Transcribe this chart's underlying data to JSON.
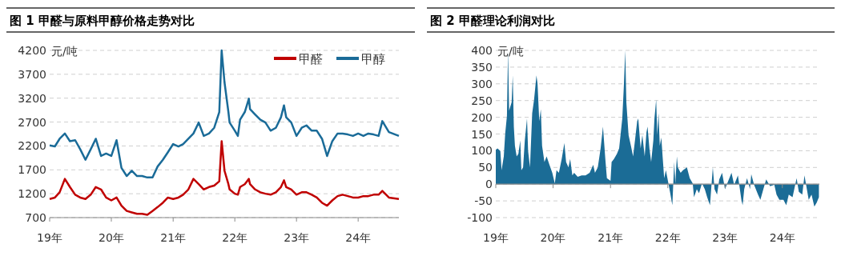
{
  "chart_data": [
    {
      "type": "line",
      "title": "图 1 甲醛与原料甲醇价格走势对比",
      "ylabel": "元/吨",
      "x": [
        "2019-01-01",
        "2019-02-01",
        "2019-03-01",
        "2019-04-01",
        "2019-05-01",
        "2019-06-01",
        "2019-07-01",
        "2019-08-01",
        "2019-09-01",
        "2019-10-01",
        "2019-11-01",
        "2019-12-01",
        "2020-01-01",
        "2020-02-01",
        "2020-03-01",
        "2020-04-01",
        "2020-05-01",
        "2020-06-01",
        "2020-07-01",
        "2020-08-01",
        "2020-09-01",
        "2020-10-01",
        "2020-11-01",
        "2020-12-01",
        "2021-01-01",
        "2021-02-01",
        "2021-03-01",
        "2021-04-01",
        "2021-05-01",
        "2021-06-01",
        "2021-07-01",
        "2021-08-01",
        "2021-09-01",
        "2021-10-01",
        "2021-10-15",
        "2021-11-01",
        "2021-11-24",
        "2021-12-01",
        "2022-01-01",
        "2022-01-19",
        "2022-02-01",
        "2022-03-01",
        "2022-03-25",
        "2022-04-01",
        "2022-05-01",
        "2022-06-01",
        "2022-07-01",
        "2022-08-01",
        "2022-09-01",
        "2022-10-01",
        "2022-10-19",
        "2022-11-01",
        "2022-12-01",
        "2023-01-01",
        "2023-02-01",
        "2023-03-01",
        "2023-04-01",
        "2023-05-01",
        "2023-06-01",
        "2023-07-01",
        "2023-08-01",
        "2023-09-01",
        "2023-10-01",
        "2023-11-01",
        "2023-12-01",
        "2024-01-01",
        "2024-02-01",
        "2024-03-01",
        "2024-04-01",
        "2024-05-01",
        "2024-05-23",
        "2024-07-01",
        "2024-08-29"
      ],
      "series": [
        {
          "name": "甲醛",
          "color": "#c00000",
          "values": [
            1090,
            1120,
            1230,
            1510,
            1340,
            1180,
            1120,
            1090,
            1180,
            1340,
            1290,
            1120,
            1060,
            1120,
            950,
            840,
            810,
            780,
            780,
            760,
            840,
            920,
            1010,
            1120,
            1090,
            1120,
            1180,
            1290,
            1510,
            1400,
            1290,
            1340,
            1370,
            1460,
            2300,
            1680,
            1400,
            1290,
            1200,
            1180,
            1340,
            1400,
            1510,
            1400,
            1290,
            1230,
            1200,
            1180,
            1230,
            1340,
            1480,
            1340,
            1290,
            1180,
            1230,
            1230,
            1180,
            1120,
            1010,
            950,
            1060,
            1150,
            1180,
            1150,
            1120,
            1120,
            1150,
            1150,
            1180,
            1180,
            1260,
            1120,
            1090
          ]
        },
        {
          "name": "甲醇",
          "color": "#1a6b98",
          "values": [
            2210,
            2190,
            2350,
            2460,
            2300,
            2320,
            2130,
            1910,
            2130,
            2350,
            1990,
            2040,
            1990,
            2320,
            1740,
            1570,
            1680,
            1570,
            1570,
            1540,
            1540,
            1770,
            1910,
            2070,
            2240,
            2190,
            2240,
            2350,
            2460,
            2690,
            2410,
            2460,
            2580,
            2910,
            4200,
            3530,
            2910,
            2690,
            2520,
            2410,
            2750,
            2910,
            3190,
            2970,
            2860,
            2750,
            2690,
            2520,
            2580,
            2800,
            3050,
            2800,
            2690,
            2410,
            2580,
            2630,
            2520,
            2520,
            2350,
            1990,
            2300,
            2460,
            2460,
            2440,
            2410,
            2460,
            2410,
            2460,
            2440,
            2410,
            2720,
            2490,
            2410
          ]
        }
      ],
      "xlim": [
        "2019-01-01",
        "2024-08-29"
      ],
      "xticks": [
        {
          "value": "2019",
          "label": "19年"
        },
        {
          "value": "2020",
          "label": "20年"
        },
        {
          "value": "2021",
          "label": "21年"
        },
        {
          "value": "2022",
          "label": "22年"
        },
        {
          "value": "2023",
          "label": "23年"
        },
        {
          "value": "2024",
          "label": "24年"
        }
      ],
      "ylim": [
        700,
        4200
      ],
      "yticks": [
        700,
        1200,
        1700,
        2200,
        2700,
        3200,
        3700,
        4200
      ],
      "grid": "y",
      "legend": "top right"
    },
    {
      "type": "area",
      "title": "图 2 甲醛理论利润对比",
      "ylabel": "元/吨",
      "x": [
        "2019-01-01",
        "2019-01-12",
        "2019-01-30",
        "2019-02-07",
        "2019-02-21",
        "2019-03-02",
        "2019-03-13",
        "2019-03-20",
        "2019-03-27",
        "2019-04-12",
        "2019-04-19",
        "2019-04-26",
        "2019-05-03",
        "2019-05-14",
        "2019-05-25",
        "2019-06-06",
        "2019-06-13",
        "2019-06-24",
        "2019-07-05",
        "2019-07-19",
        "2019-07-26",
        "2019-08-07",
        "2019-08-21",
        "2019-09-02",
        "2019-09-17",
        "2019-09-24",
        "2019-10-05",
        "2019-10-15",
        "2019-10-23",
        "2019-11-07",
        "2019-11-21",
        "2019-12-09",
        "2019-12-27",
        "2020-01-12",
        "2020-01-23",
        "2020-02-07",
        "2020-02-25",
        "2020-03-13",
        "2020-03-24",
        "2020-04-08",
        "2020-04-19",
        "2020-05-03",
        "2020-05-14",
        "2020-06-06",
        "2020-07-01",
        "2020-07-26",
        "2020-08-21",
        "2020-09-13",
        "2020-09-24",
        "2020-10-12",
        "2020-10-30",
        "2020-11-14",
        "2020-11-29",
        "2020-12-09",
        "2021-01-01",
        "2021-01-08",
        "2021-01-23",
        "2021-02-11",
        "2021-02-25",
        "2021-03-17",
        "2021-03-27",
        "2021-04-05",
        "2021-04-12",
        "2021-04-26",
        "2021-05-11",
        "2021-05-25",
        "2021-06-06",
        "2021-06-20",
        "2021-06-27",
        "2021-07-12",
        "2021-07-23",
        "2021-08-07",
        "2021-08-18",
        "2021-08-25",
        "2021-09-06",
        "2021-09-17",
        "2021-10-01",
        "2021-10-08",
        "2021-10-19",
        "2021-10-26",
        "2021-11-03",
        "2021-11-11",
        "2021-11-21",
        "2021-11-29",
        "2021-12-09",
        "2021-12-20",
        "2022-01-05",
        "2022-01-15",
        "2022-01-30",
        "2022-02-11",
        "2022-02-18",
        "2022-02-28",
        "2022-03-06",
        "2022-03-24",
        "2022-04-08",
        "2022-05-03",
        "2022-05-21",
        "2022-06-09",
        "2022-06-17",
        "2022-07-05",
        "2022-07-19",
        "2022-08-07",
        "2022-08-25",
        "2022-09-09",
        "2022-09-27",
        "2022-10-15",
        "2022-10-26",
        "2022-11-11",
        "2022-11-25",
        "2022-12-13",
        "2023-01-01",
        "2023-01-15",
        "2023-02-11",
        "2023-02-28",
        "2023-03-24",
        "2023-04-15",
        "2023-04-23",
        "2023-05-03",
        "2023-05-21",
        "2023-06-09",
        "2023-06-17",
        "2023-07-05",
        "2023-07-30",
        "2023-08-14",
        "2023-09-02",
        "2023-09-20",
        "2023-10-15",
        "2023-11-11",
        "2023-11-25",
        "2023-12-13",
        "2024-01-08",
        "2024-01-26",
        "2024-02-11",
        "2024-03-06",
        "2024-04-01",
        "2024-04-15",
        "2024-05-07",
        "2024-05-21",
        "2024-06-02",
        "2024-06-17",
        "2024-07-05",
        "2024-07-23",
        "2024-08-07",
        "2024-08-21"
      ],
      "series": [
        {
          "color": "#1b6c96",
          "values": [
            103,
            107,
            99,
            42,
            83,
            151,
            204,
            398,
            220,
            245,
            325,
            172,
            115,
            83,
            91,
            131,
            42,
            50,
            131,
            196,
            99,
            50,
            212,
            253,
            325,
            301,
            188,
            224,
            115,
            66,
            83,
            58,
            34,
            2,
            42,
            34,
            75,
            123,
            66,
            50,
            75,
            26,
            34,
            22,
            26,
            26,
            34,
            58,
            34,
            50,
            107,
            172,
            75,
            18,
            10,
            66,
            75,
            91,
            107,
            196,
            293,
            400,
            245,
            147,
            115,
            83,
            131,
            188,
            196,
            107,
            147,
            83,
            155,
            172,
            107,
            66,
            131,
            196,
            253,
            147,
            212,
            115,
            139,
            83,
            18,
            42,
            2,
            -23,
            -63,
            66,
            2,
            83,
            50,
            34,
            42,
            50,
            18,
            2,
            -39,
            -15,
            -27,
            2,
            -15,
            -39,
            -63,
            50,
            -15,
            -31,
            14,
            34,
            -15,
            2,
            34,
            -2,
            26,
            -47,
            -63,
            -15,
            18,
            -15,
            30,
            -2,
            -31,
            -47,
            -15,
            14,
            -6,
            -2,
            -31,
            -47,
            -47,
            -63,
            -31,
            -39,
            18,
            -23,
            -31,
            26,
            -6,
            -47,
            -31,
            -67,
            -55,
            -39
          ]
        }
      ],
      "xlim": [
        "2019-01-01",
        "2024-08-24"
      ],
      "xticks": [
        {
          "value": "2019",
          "label": "19年"
        },
        {
          "value": "2020",
          "label": "20年"
        },
        {
          "value": "2021",
          "label": "21年"
        },
        {
          "value": "2022",
          "label": "22年"
        },
        {
          "value": "2023",
          "label": "23年"
        },
        {
          "value": "2024",
          "label": "24年"
        }
      ],
      "ylim": [
        -100,
        400
      ],
      "yticks": [
        -100,
        -50,
        0,
        50,
        100,
        150,
        200,
        250,
        300,
        350,
        400
      ],
      "grid": "y"
    }
  ]
}
